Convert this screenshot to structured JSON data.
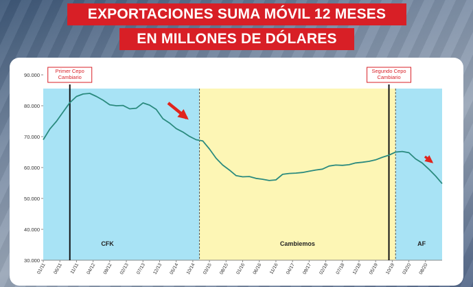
{
  "header": {
    "title_line1": "EXPORTACIONES SUMA MÓVIL 12 MESES",
    "title_line2": "EN MILLONES DE DÓLARES"
  },
  "colors": {
    "title_bg": "#d81f26",
    "line": "#2a8a7e",
    "period_cfk": "#a8e3f5",
    "period_cambiemos": "#fdf6b5",
    "period_af": "#a8e3f5",
    "arrow": "#e0241c"
  },
  "chart_data": {
    "type": "line",
    "title": "EXPORTACIONES SUMA MÓVIL 12 MESES EN MILLONES DE DÓLARES",
    "xlabel": "",
    "ylabel": "",
    "ylim": [
      30000,
      90000
    ],
    "y_ticks": [
      "90.000",
      "80.000",
      "70.000",
      "60.000",
      "50.000",
      "40.000",
      "30.000"
    ],
    "y_tick_values": [
      90000,
      80000,
      70000,
      60000,
      50000,
      40000,
      30000
    ],
    "x_tick_labels": [
      "01/11",
      "06/11",
      "11/11",
      "04/12",
      "09/12",
      "02/13",
      "07/13",
      "12/13",
      "05/14",
      "10/14",
      "03/15",
      "08/15",
      "01/16",
      "06/16",
      "11/16",
      "04/17",
      "09/17",
      "02/18",
      "07/18",
      "12/18",
      "05/19",
      "10/19",
      "03/20",
      "08/20"
    ],
    "x_tick_index": [
      0,
      5,
      10,
      15,
      20,
      25,
      30,
      35,
      40,
      45,
      50,
      55,
      60,
      65,
      70,
      75,
      80,
      85,
      90,
      95,
      100,
      105,
      110,
      115
    ],
    "x_range_index": [
      0,
      120
    ],
    "periods": [
      {
        "label": "CFK",
        "start": 0,
        "end": 47
      },
      {
        "label": "Cambiemos",
        "start": 47,
        "end": 106
      },
      {
        "label": "AF",
        "start": 106,
        "end": 120
      }
    ],
    "events": [
      {
        "label_lines": [
          "Primer Cepo",
          "Cambiario"
        ],
        "index": 8
      },
      {
        "label_lines": [
          "Segundo Cepo",
          "Cambiario"
        ],
        "index": 104
      }
    ],
    "series": [
      {
        "name": "Exportaciones suma móvil 12 meses",
        "x": [
          0,
          2,
          4,
          6,
          8,
          10,
          12,
          14,
          16,
          18,
          20,
          22,
          24,
          26,
          28,
          30,
          32,
          34,
          36,
          38,
          40,
          42,
          44,
          46,
          48,
          50,
          52,
          54,
          56,
          58,
          60,
          62,
          64,
          66,
          68,
          70,
          72,
          74,
          76,
          78,
          80,
          82,
          84,
          86,
          88,
          90,
          92,
          94,
          96,
          98,
          100,
          102,
          104,
          106,
          108,
          110,
          112,
          114,
          116,
          118,
          120
        ],
        "values": [
          69000,
          72500,
          75000,
          78000,
          81000,
          83000,
          83800,
          84000,
          83000,
          81800,
          80300,
          80000,
          80100,
          79000,
          79200,
          80900,
          80200,
          78800,
          75800,
          74400,
          72600,
          71500,
          70100,
          69000,
          68600,
          66000,
          63000,
          60800,
          59200,
          57400,
          57000,
          57100,
          56500,
          56200,
          55800,
          56000,
          57800,
          58100,
          58200,
          58400,
          58800,
          59200,
          59500,
          60500,
          60800,
          60700,
          60900,
          61500,
          61700,
          62000,
          62500,
          63300,
          64000,
          65000,
          65200,
          64800,
          62800,
          61500,
          59500,
          57300,
          54800
        ]
      }
    ]
  }
}
